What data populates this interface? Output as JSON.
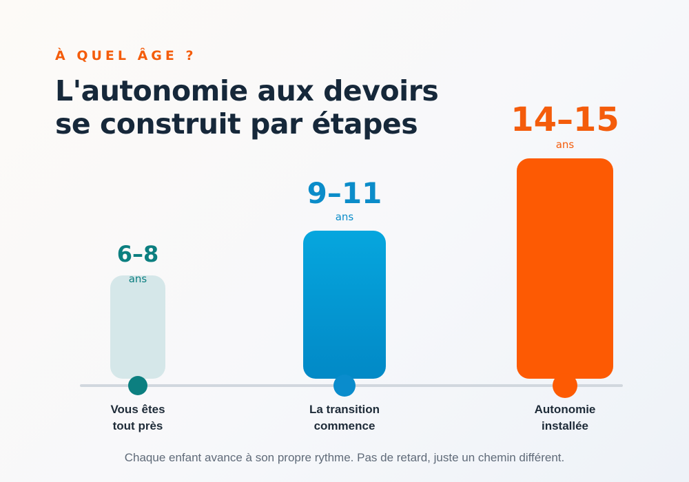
{
  "header": {
    "eyebrow": "À QUEL ÂGE ?",
    "title_line1": "L'autonomie aux devoirs",
    "title_line2": "se construit par étapes"
  },
  "footnote": "Chaque enfant avance à son propre rythme. Pas de retard, juste un chemin différent.",
  "chart_data": {
    "type": "bar",
    "title": "L'autonomie aux devoirs se construit par étapes",
    "categories": [
      "6–8",
      "9–11",
      "14–15"
    ],
    "unit": "ans",
    "stages": [
      "Vous êtes tout près",
      "La transition commence",
      "Autonomie installée"
    ],
    "stage_lines": [
      [
        "Vous êtes",
        "tout près"
      ],
      [
        "La transition",
        "commence"
      ],
      [
        "Autonomie",
        "installée"
      ]
    ],
    "values": [
      150,
      215,
      320
    ],
    "value_scale": "relative bar height (autonomy level, illustrative)",
    "colors": {
      "bar1": "#d5e7e9",
      "bar2_top": "#06a6de",
      "bar2_bottom": "#0289c6",
      "bar3": "#fd5a03",
      "label1": "#0c7f80",
      "label2": "#0b8cc9",
      "label3": "#f45c0b",
      "dot1": "#0c7f80",
      "dot2": "#0a8ccc",
      "dot3": "#fd5a03",
      "axis": "#d1d7de",
      "stage_text": "#1e2b38"
    },
    "grid": false,
    "legend": "none"
  }
}
